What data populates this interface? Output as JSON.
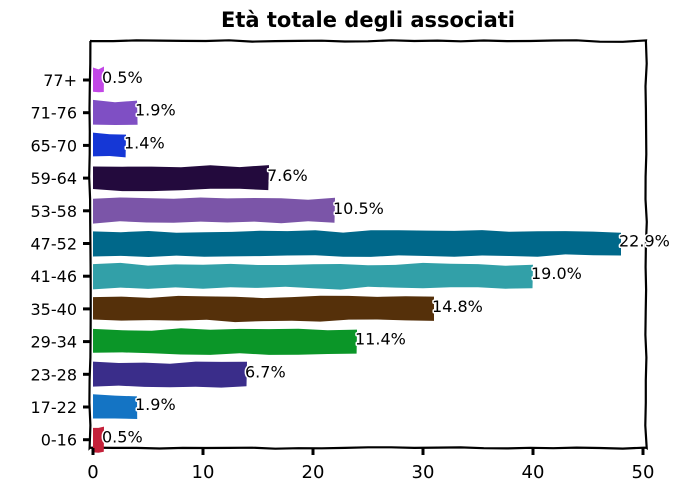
{
  "chart_data": {
    "type": "bar",
    "orientation": "horizontal",
    "title": "Età totale degli associati",
    "xlabel": "",
    "ylabel": "",
    "categories": [
      "77+",
      "71-76",
      "65-70",
      "59-64",
      "53-58",
      "47-52",
      "41-46",
      "35-40",
      "29-34",
      "23-28",
      "17-22",
      "0-16"
    ],
    "values": [
      1,
      4,
      3,
      16,
      22,
      48,
      40,
      31,
      24,
      14,
      4,
      1
    ],
    "labels": [
      "0.5%",
      "1.9%",
      "1.4%",
      "7.6%",
      "10.5%",
      "22.9%",
      "19.0%",
      "14.8%",
      "11.4%",
      "6.7%",
      "1.9%",
      "0.5%"
    ],
    "colors": [
      "#c247e6",
      "#7f4fc4",
      "#1537d6",
      "#230a3d",
      "#7b55a8",
      "#00688a",
      "#32a0a8",
      "#55300a",
      "#0b9628",
      "#3a2d8a",
      "#1474c4",
      "#c4213a"
    ],
    "xlim": [
      0,
      50
    ],
    "xticks": [
      0,
      10,
      20,
      30,
      40,
      50
    ],
    "grid": false,
    "legend": "none"
  }
}
